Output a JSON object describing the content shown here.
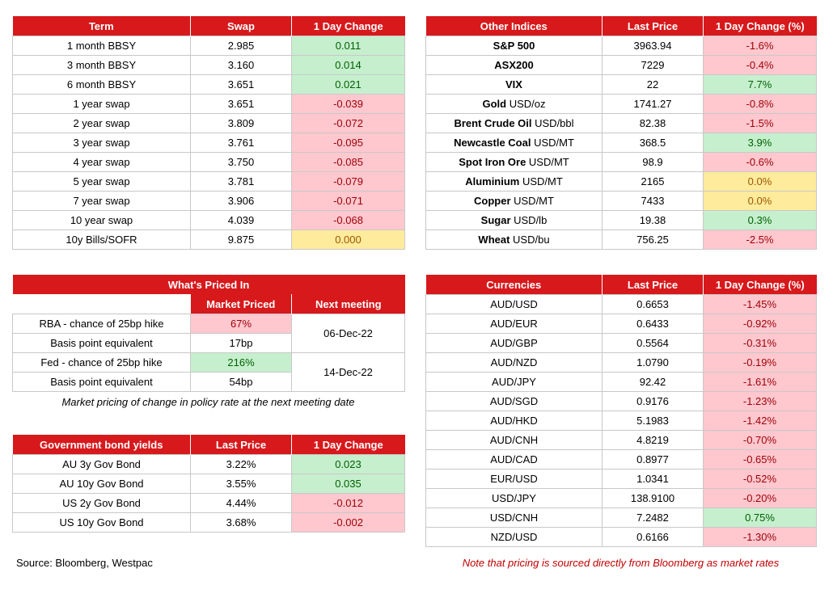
{
  "swaps": {
    "headers": [
      "Term",
      "Swap",
      "1 Day Change"
    ],
    "rows": [
      {
        "term": "1 month BBSY",
        "value": "2.985",
        "change": "0.011",
        "tone": "pos"
      },
      {
        "term": "3 month BBSY",
        "value": "3.160",
        "change": "0.014",
        "tone": "pos"
      },
      {
        "term": "6 month BBSY",
        "value": "3.651",
        "change": "0.021",
        "tone": "pos"
      },
      {
        "term": "1 year swap",
        "value": "3.651",
        "change": "-0.039",
        "tone": "neg"
      },
      {
        "term": "2 year swap",
        "value": "3.809",
        "change": "-0.072",
        "tone": "neg"
      },
      {
        "term": "3 year swap",
        "value": "3.761",
        "change": "-0.095",
        "tone": "neg"
      },
      {
        "term": "4 year swap",
        "value": "3.750",
        "change": "-0.085",
        "tone": "neg"
      },
      {
        "term": "5 year swap",
        "value": "3.781",
        "change": "-0.079",
        "tone": "neg"
      },
      {
        "term": "7 year swap",
        "value": "3.906",
        "change": "-0.071",
        "tone": "neg"
      },
      {
        "term": "10 year swap",
        "value": "4.039",
        "change": "-0.068",
        "tone": "neg"
      },
      {
        "term": "10y Bills/SOFR",
        "value": "9.875",
        "change": "0.000",
        "tone": "flat"
      }
    ]
  },
  "indices": {
    "headers": [
      "Other Indices",
      "Last Price",
      "1 Day Change (%)"
    ],
    "rows": [
      {
        "name": "S&P 500",
        "unit": "",
        "value": "3963.94",
        "change": "-1.6%",
        "tone": "neg"
      },
      {
        "name": "ASX200",
        "unit": "",
        "value": "7229",
        "change": "-0.4%",
        "tone": "neg"
      },
      {
        "name": "VIX",
        "unit": "",
        "value": "22",
        "change": "7.7%",
        "tone": "pos"
      },
      {
        "name": "Gold",
        "unit": " USD/oz",
        "value": "1741.27",
        "change": "-0.8%",
        "tone": "neg"
      },
      {
        "name": "Brent Crude Oil",
        "unit": " USD/bbl",
        "value": "82.38",
        "change": "-1.5%",
        "tone": "neg"
      },
      {
        "name": "Newcastle Coal",
        "unit": " USD/MT",
        "value": "368.5",
        "change": "3.9%",
        "tone": "pos"
      },
      {
        "name": "Spot Iron Ore",
        "unit": " USD/MT",
        "value": "98.9",
        "change": "-0.6%",
        "tone": "neg"
      },
      {
        "name": "Aluminium",
        "unit": " USD/MT",
        "value": "2165",
        "change": "0.0%",
        "tone": "flat"
      },
      {
        "name": "Copper",
        "unit": " USD/MT",
        "value": "7433",
        "change": "0.0%",
        "tone": "flat"
      },
      {
        "name": "Sugar",
        "unit": " USD/lb",
        "value": "19.38",
        "change": "0.3%",
        "tone": "pos"
      },
      {
        "name": "Wheat",
        "unit": " USD/bu",
        "value": "756.25",
        "change": "-2.5%",
        "tone": "neg"
      }
    ]
  },
  "priced_in": {
    "title": "What's Priced In",
    "col_market": "Market Priced",
    "col_next": "Next meeting",
    "rba_label": "RBA - chance of 25bp hike",
    "rba_value": "67%",
    "rba_bp_label": "Basis point equivalent",
    "rba_bp_value": "17bp",
    "rba_date": "06-Dec-22",
    "fed_label": "Fed - chance of 25bp hike",
    "fed_value": "216%",
    "fed_bp_label": "Basis point equivalent",
    "fed_bp_value": "54bp",
    "fed_date": "14-Dec-22",
    "note": "Market pricing of change in policy rate at the next meeting date"
  },
  "bonds": {
    "headers": [
      "Government bond yields",
      "Last Price",
      "1 Day Change"
    ],
    "rows": [
      {
        "name": "AU 3y Gov Bond",
        "value": "3.22%",
        "change": "0.023",
        "tone": "pos"
      },
      {
        "name": "AU 10y Gov Bond",
        "value": "3.55%",
        "change": "0.035",
        "tone": "pos"
      },
      {
        "name": "US 2y Gov Bond",
        "value": "4.44%",
        "change": "-0.012",
        "tone": "neg"
      },
      {
        "name": "US 10y Gov Bond",
        "value": "3.68%",
        "change": "-0.002",
        "tone": "neg"
      }
    ]
  },
  "currencies": {
    "headers": [
      "Currencies",
      "Last Price",
      "1 Day Change (%)"
    ],
    "rows": [
      {
        "pair": "AUD/USD",
        "value": "0.6653",
        "change": "-1.45%",
        "tone": "neg"
      },
      {
        "pair": "AUD/EUR",
        "value": "0.6433",
        "change": "-0.92%",
        "tone": "neg"
      },
      {
        "pair": "AUD/GBP",
        "value": "0.5564",
        "change": "-0.31%",
        "tone": "neg"
      },
      {
        "pair": "AUD/NZD",
        "value": "1.0790",
        "change": "-0.19%",
        "tone": "neg"
      },
      {
        "pair": "AUD/JPY",
        "value": "92.42",
        "change": "-1.61%",
        "tone": "neg"
      },
      {
        "pair": "AUD/SGD",
        "value": "0.9176",
        "change": "-1.23%",
        "tone": "neg"
      },
      {
        "pair": "AUD/HKD",
        "value": "5.1983",
        "change": "-1.42%",
        "tone": "neg"
      },
      {
        "pair": "AUD/CNH",
        "value": "4.8219",
        "change": "-0.70%",
        "tone": "neg"
      },
      {
        "pair": "AUD/CAD",
        "value": "0.8977",
        "change": "-0.65%",
        "tone": "neg"
      },
      {
        "pair": "EUR/USD",
        "value": "1.0341",
        "change": "-0.52%",
        "tone": "neg"
      },
      {
        "pair": "USD/JPY",
        "value": "138.9100",
        "change": "-0.20%",
        "tone": "neg"
      },
      {
        "pair": "USD/CNH",
        "value": "7.2482",
        "change": "0.75%",
        "tone": "pos"
      },
      {
        "pair": "NZD/USD",
        "value": "0.6166",
        "change": "-1.30%",
        "tone": "neg"
      }
    ]
  },
  "footer": {
    "source": "Source: Bloomberg, Westpac",
    "disclaimer": "Note that pricing is sourced directly from Bloomberg as market rates"
  }
}
